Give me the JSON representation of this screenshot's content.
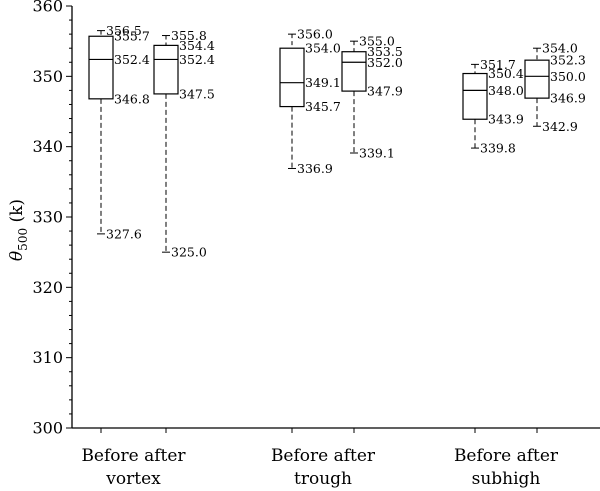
{
  "chart_data": {
    "type": "boxplot",
    "title": "",
    "ylabel": {
      "symbol": "θ",
      "subscript": "500",
      "unit": "(k)"
    },
    "xlabel": "",
    "ylim": [
      300,
      360
    ],
    "yticks": [
      300,
      310,
      320,
      330,
      340,
      350,
      360
    ],
    "grid": false,
    "groups": [
      {
        "label_line1": "Before after",
        "label_line2": "vortex"
      },
      {
        "label_line1": "Before after",
        "label_line2": "trough"
      },
      {
        "label_line1": "Before after",
        "label_line2": "subhigh"
      }
    ],
    "boxes": [
      {
        "group": 0,
        "stage": "Before",
        "max": 356.5,
        "q3": 355.7,
        "median": 352.4,
        "q1": 346.8,
        "min": 327.6,
        "labels": [
          "356.5",
          "355.7",
          "352.4",
          "346.8",
          "327.6"
        ]
      },
      {
        "group": 0,
        "stage": "after",
        "max": 355.8,
        "q3": 354.4,
        "median": 352.4,
        "q1": 347.5,
        "min": 325.0,
        "labels": [
          "355.8",
          "354.4",
          "352.4",
          "347.5",
          "325.0"
        ]
      },
      {
        "group": 1,
        "stage": "Before",
        "max": 356.0,
        "q3": 354.0,
        "median": 349.1,
        "q1": 345.7,
        "min": 336.9,
        "labels": [
          "356.0",
          "354.0",
          "349.1",
          "345.7",
          "336.9"
        ]
      },
      {
        "group": 1,
        "stage": "after",
        "max": 355.0,
        "q3": 353.5,
        "median": 352.0,
        "q1": 347.9,
        "min": 339.1,
        "labels": [
          "355.0",
          "353.5",
          "352.0",
          "347.9",
          "339.1"
        ]
      },
      {
        "group": 2,
        "stage": "Before",
        "max": 351.7,
        "q3": 350.4,
        "median": 348.0,
        "q1": 343.9,
        "min": 339.8,
        "labels": [
          "351.7",
          "350.4",
          "348.0",
          "343.9",
          "339.8"
        ]
      },
      {
        "group": 2,
        "stage": "after",
        "max": 354.0,
        "q3": 352.3,
        "median": 350.0,
        "q1": 346.9,
        "min": 342.9,
        "labels": [
          "354.0",
          "352.3",
          "350.0",
          "346.9",
          "342.9"
        ]
      }
    ]
  }
}
